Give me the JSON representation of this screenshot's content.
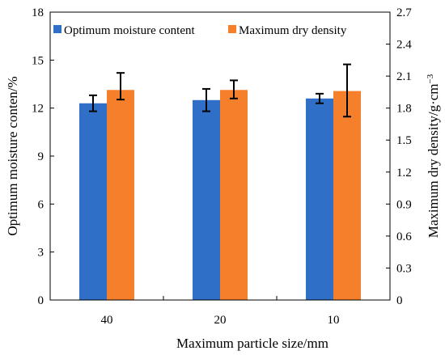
{
  "chart_data": {
    "type": "bar",
    "xlabel": "Maximum particle size/mm",
    "ylabel_left": "Optimum moisture conten/%",
    "ylabel_right_base": "Maximum dry density/g·cm",
    "ylabel_right_sup": "−3",
    "categories": [
      "40",
      "20",
      "10"
    ],
    "y_left": {
      "min": 0,
      "max": 18,
      "ticks": [
        0,
        3,
        6,
        9,
        12,
        15,
        18
      ],
      "tick_labels": [
        "0",
        "3",
        "6",
        "9",
        "12",
        "15",
        "18"
      ]
    },
    "y_right": {
      "min": 0,
      "max": 2.7,
      "ticks": [
        0,
        0.3,
        0.6,
        0.9,
        1.2,
        1.5,
        1.8,
        2.1,
        2.4,
        2.7
      ],
      "tick_labels": [
        "0",
        "0.3",
        "0.6",
        "0.9",
        "1.2",
        "1.5",
        "1.8",
        "2.1",
        "2.4",
        "2.7"
      ]
    },
    "series": [
      {
        "name": "Optimum moisture content",
        "axis": "left",
        "color": "#2f6fc8",
        "values": [
          12.3,
          12.5,
          12.6
        ],
        "err_low": [
          11.8,
          11.8,
          12.3
        ],
        "err_high": [
          12.8,
          13.2,
          12.9
        ]
      },
      {
        "name": "Maximum dry density",
        "axis": "right",
        "color": "#f57f2b",
        "values": [
          1.97,
          1.97,
          1.96
        ],
        "err_low": [
          1.88,
          1.89,
          1.72
        ],
        "err_high": [
          2.13,
          2.06,
          2.21
        ]
      }
    ],
    "legend_position": "top",
    "grid": false
  }
}
